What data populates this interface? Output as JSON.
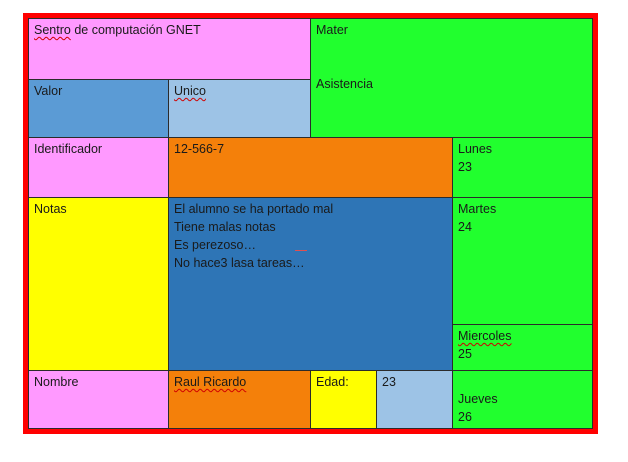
{
  "header": {
    "school_prefix": "Sentro",
    "school_rest": " de computación GNET"
  },
  "subject": {
    "label": "Mater"
  },
  "attendance": {
    "label": "Asistencia"
  },
  "value": {
    "label": "Valor",
    "value": "Unico"
  },
  "identifier": {
    "label": "Identificador",
    "value": "12-566-7"
  },
  "notes": {
    "label": "Notas",
    "lines": [
      "El alumno se ha portado mal",
      "Tiene malas notas",
      "Es perezoso…",
      "No hace3 lasa tareas…"
    ]
  },
  "name": {
    "label": "Nombre",
    "value": "Raul Ricardo"
  },
  "age": {
    "label": "Edad:",
    "value": "23"
  },
  "days": [
    {
      "label": "Lunes",
      "value": "23"
    },
    {
      "label": "Martes",
      "value": "24"
    },
    {
      "label": "Miercoles",
      "value": "25"
    },
    {
      "label": "Jueves",
      "value": "26"
    }
  ]
}
